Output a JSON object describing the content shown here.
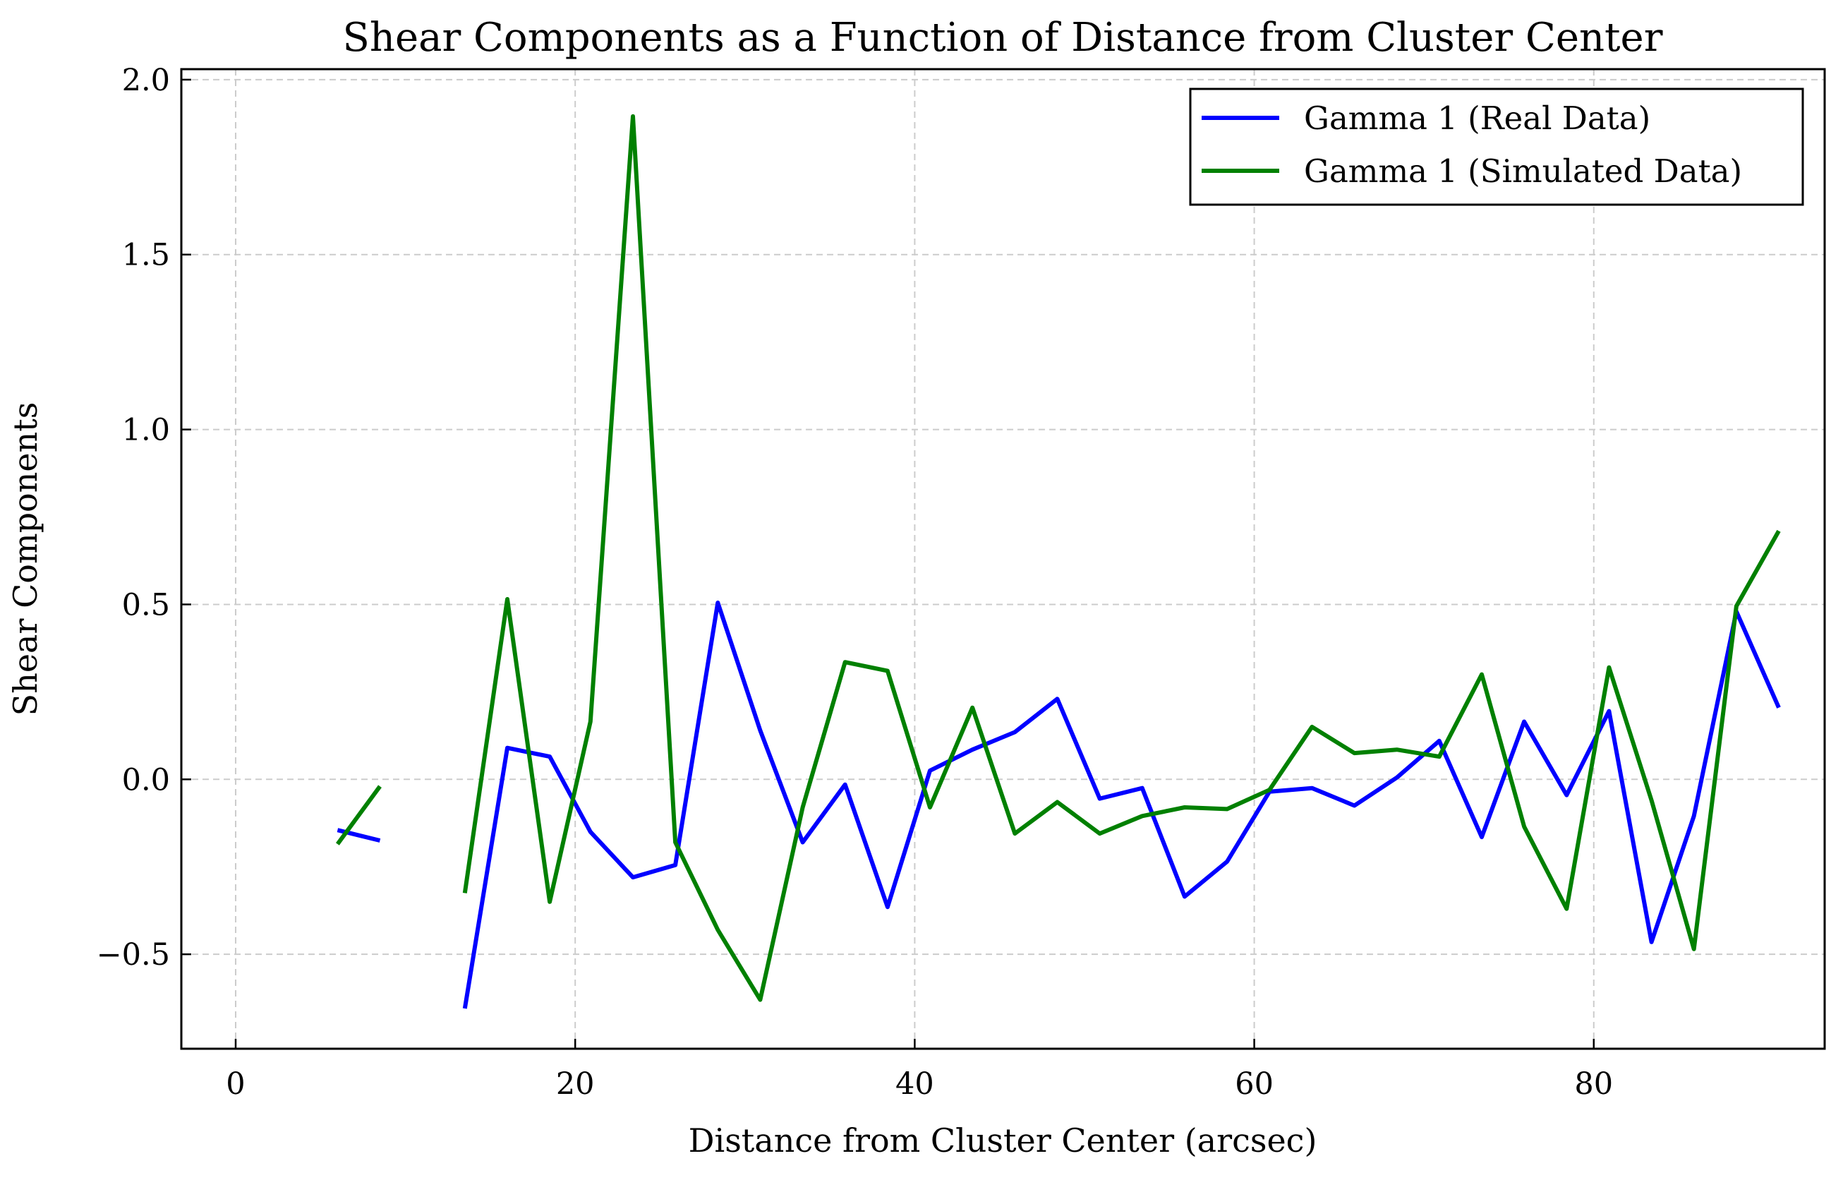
{
  "chart_data": {
    "type": "line",
    "title": "Shear Components as a Function of Distance from Cluster Center",
    "xlabel": "Distance from Cluster Center (arcsec)",
    "ylabel": "Shear Components",
    "xlim": [
      -3.2,
      93.6
    ],
    "ylim": [
      -0.77,
      2.03
    ],
    "xticks": [
      0,
      20,
      40,
      60,
      80
    ],
    "xtick_labels": [
      "0",
      "20",
      "40",
      "60",
      "80"
    ],
    "yticks": [
      -0.5,
      0.0,
      0.5,
      1.0,
      1.5,
      2.0
    ],
    "ytick_labels": [
      "−0.5",
      "0.0",
      "0.5",
      "1.0",
      "1.5",
      "2.0"
    ],
    "grid": true,
    "legend_position": "top-right",
    "x": [
      6.0,
      8.5,
      11.0,
      13.5,
      16.0,
      18.5,
      20.9,
      23.4,
      25.9,
      28.4,
      30.9,
      33.4,
      35.9,
      38.4,
      40.9,
      43.4,
      45.9,
      48.4,
      50.9,
      53.4,
      55.9,
      58.4,
      60.9,
      63.4,
      65.9,
      68.4,
      70.9,
      73.4,
      75.9,
      78.4,
      80.9,
      83.4,
      85.9,
      88.4,
      90.9
    ],
    "series": [
      {
        "name": "Gamma 1 (Real Data)",
        "color": "#0000ff",
        "values": [
          -0.145,
          -0.175,
          null,
          -0.655,
          0.09,
          0.065,
          -0.15,
          -0.28,
          -0.245,
          0.505,
          0.14,
          -0.18,
          -0.015,
          -0.365,
          0.025,
          0.085,
          0.135,
          0.23,
          -0.055,
          -0.025,
          -0.335,
          -0.235,
          -0.035,
          -0.025,
          -0.075,
          0.005,
          0.11,
          -0.165,
          0.165,
          -0.045,
          0.195,
          -0.465,
          -0.105,
          0.48,
          0.205
        ]
      },
      {
        "name": "Gamma 1 (Simulated Data)",
        "color": "#008000",
        "values": [
          -0.185,
          -0.02,
          null,
          -0.325,
          0.515,
          -0.35,
          0.165,
          1.895,
          -0.18,
          -0.43,
          -0.63,
          -0.08,
          0.335,
          0.31,
          -0.08,
          0.205,
          -0.155,
          -0.065,
          -0.155,
          -0.105,
          -0.08,
          -0.085,
          -0.03,
          0.15,
          0.075,
          0.085,
          0.065,
          0.3,
          -0.135,
          -0.37,
          0.32,
          -0.06,
          -0.485,
          0.495,
          0.71
        ]
      }
    ]
  }
}
